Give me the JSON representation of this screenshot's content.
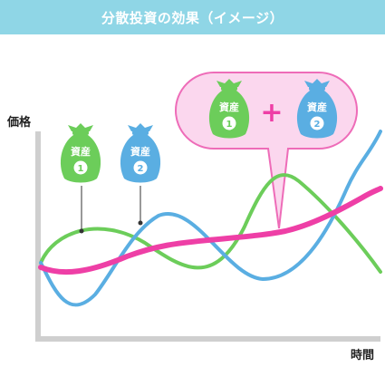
{
  "title": "分散投資の効果（イメージ）",
  "y_label": "価格",
  "x_label": "時間",
  "assets": [
    {
      "label": "資産",
      "number": "1",
      "color": "#6ccd5a"
    },
    {
      "label": "資産",
      "number": "2",
      "color": "#5aaee2"
    }
  ],
  "combined": {
    "plus": "+",
    "color": "#ee3fa6"
  },
  "colors": {
    "title_bg": "#8fd6e6",
    "axis": "#cfcfcf",
    "callout_fill": "#fbd7ee",
    "callout_stroke": "#ee6cb8"
  }
}
